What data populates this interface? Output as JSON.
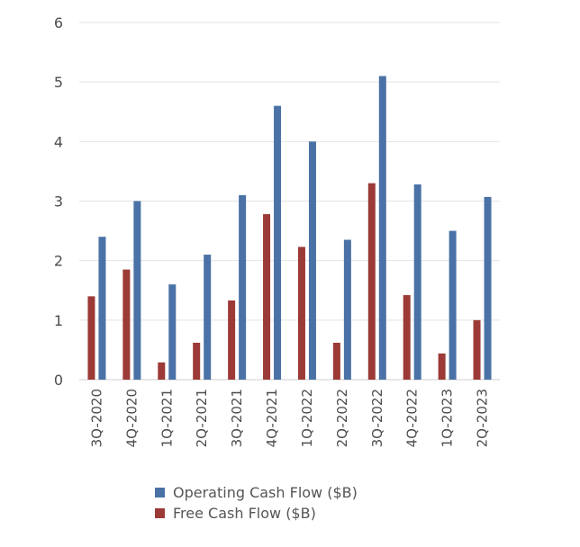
{
  "chart_data": {
    "type": "bar",
    "title": "",
    "xlabel": "",
    "ylabel": "",
    "ylim": [
      0,
      6
    ],
    "yticks": [
      "0",
      "1",
      "2",
      "3",
      "4",
      "5",
      "6"
    ],
    "grid": true,
    "legend_position": "bottom",
    "categories": [
      "3Q-2020",
      "4Q-2020",
      "1Q-2021",
      "2Q-2021",
      "3Q-2021",
      "4Q-2021",
      "1Q-2022",
      "2Q-2022",
      "3Q-2022",
      "4Q-2022",
      "1Q-2023",
      "2Q-2023"
    ],
    "series": [
      {
        "name": "Operating Cash Flow ($B)",
        "color": "#4a72a6",
        "values": [
          2.4,
          3.0,
          1.6,
          2.1,
          3.1,
          4.6,
          4.0,
          2.35,
          5.1,
          3.28,
          2.5,
          3.07
        ]
      },
      {
        "name": "Free Cash Flow ($B)",
        "color": "#9b3a36",
        "values": [
          1.4,
          1.85,
          0.29,
          0.62,
          1.33,
          2.78,
          2.23,
          0.62,
          3.3,
          1.42,
          0.44,
          1.0
        ]
      }
    ]
  }
}
